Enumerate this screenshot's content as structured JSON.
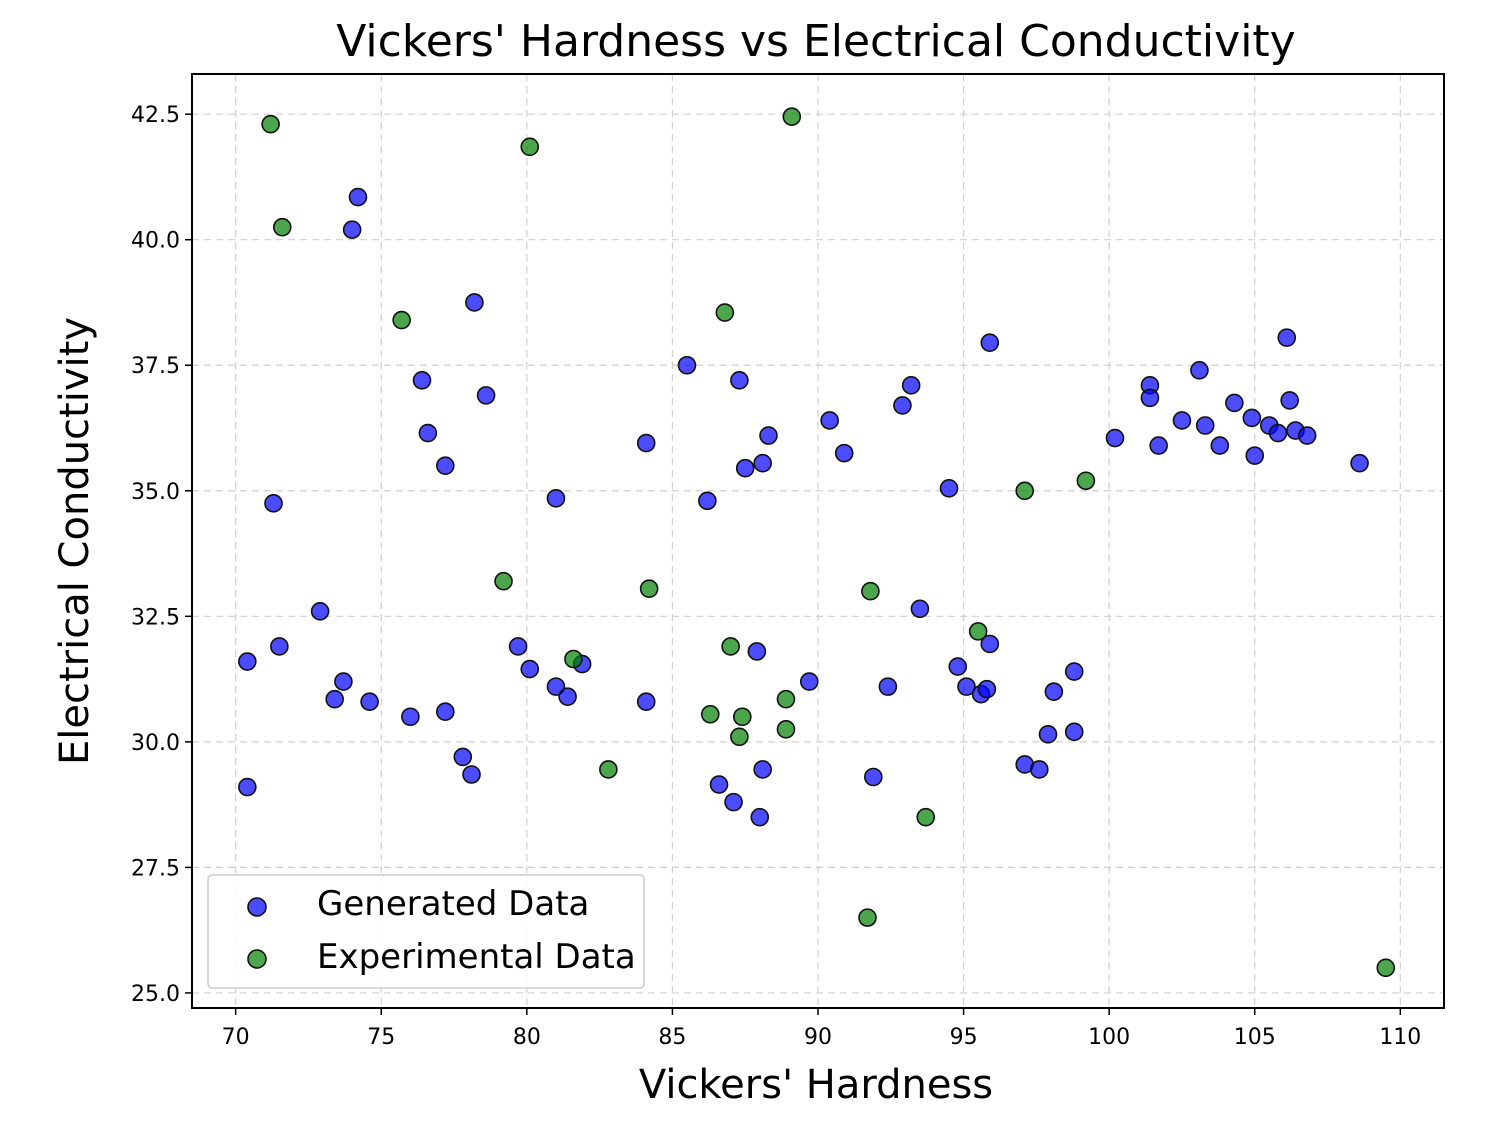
{
  "chart_data": {
    "type": "scatter",
    "title": "Vickers' Hardness vs Electrical Conductivity",
    "xlabel": "Vickers' Hardness",
    "ylabel": "Electrical Conductivity",
    "xlim": [
      68.5,
      111.5
    ],
    "ylim": [
      24.7,
      43.3
    ],
    "xticks": [
      70,
      75,
      80,
      85,
      90,
      95,
      100,
      105,
      110
    ],
    "yticks": [
      25.0,
      27.5,
      30.0,
      32.5,
      35.0,
      37.5,
      40.0,
      42.5
    ],
    "ytick_labels": [
      "25.0",
      "27.5",
      "30.0",
      "32.5",
      "35.0",
      "37.5",
      "40.0",
      "42.5"
    ],
    "grid": true,
    "legend_position": "lower-left",
    "series": [
      {
        "name": "Generated Data",
        "color": "#0000ff",
        "points": [
          [
            74.2,
            40.85
          ],
          [
            74.0,
            40.2
          ],
          [
            78.2,
            38.75
          ],
          [
            76.4,
            37.2
          ],
          [
            78.6,
            36.9
          ],
          [
            76.6,
            36.15
          ],
          [
            77.2,
            35.5
          ],
          [
            71.3,
            34.75
          ],
          [
            72.9,
            32.6
          ],
          [
            70.4,
            31.6
          ],
          [
            71.5,
            31.9
          ],
          [
            73.7,
            31.2
          ],
          [
            73.4,
            30.85
          ],
          [
            74.6,
            30.8
          ],
          [
            76.0,
            30.5
          ],
          [
            77.2,
            30.6
          ],
          [
            77.8,
            29.7
          ],
          [
            78.1,
            29.35
          ],
          [
            70.4,
            29.1
          ],
          [
            79.7,
            31.9
          ],
          [
            80.1,
            31.45
          ],
          [
            81.0,
            31.1
          ],
          [
            81.4,
            30.9
          ],
          [
            81.9,
            31.55
          ],
          [
            81.0,
            34.85
          ],
          [
            84.1,
            35.95
          ],
          [
            84.1,
            30.8
          ],
          [
            85.5,
            37.5
          ],
          [
            86.2,
            34.8
          ],
          [
            87.3,
            37.2
          ],
          [
            87.5,
            35.45
          ],
          [
            88.1,
            35.55
          ],
          [
            88.3,
            36.1
          ],
          [
            87.9,
            31.8
          ],
          [
            86.6,
            29.15
          ],
          [
            87.1,
            28.8
          ],
          [
            88.1,
            29.45
          ],
          [
            88.0,
            28.5
          ],
          [
            89.7,
            31.2
          ],
          [
            90.4,
            36.4
          ],
          [
            90.9,
            35.75
          ],
          [
            92.9,
            36.7
          ],
          [
            93.2,
            37.1
          ],
          [
            94.5,
            35.05
          ],
          [
            95.9,
            37.95
          ],
          [
            93.5,
            32.65
          ],
          [
            92.4,
            31.1
          ],
          [
            91.9,
            29.3
          ],
          [
            94.8,
            31.5
          ],
          [
            95.1,
            31.1
          ],
          [
            95.6,
            30.95
          ],
          [
            95.8,
            31.05
          ],
          [
            95.9,
            31.95
          ],
          [
            97.1,
            29.55
          ],
          [
            97.6,
            29.45
          ],
          [
            97.9,
            30.15
          ],
          [
            98.1,
            31.0
          ],
          [
            98.8,
            30.2
          ],
          [
            98.8,
            31.4
          ],
          [
            100.2,
            36.05
          ],
          [
            101.4,
            37.1
          ],
          [
            101.4,
            36.85
          ],
          [
            101.7,
            35.9
          ],
          [
            102.5,
            36.4
          ],
          [
            103.1,
            37.4
          ],
          [
            103.3,
            36.3
          ],
          [
            103.8,
            35.9
          ],
          [
            104.3,
            36.75
          ],
          [
            104.9,
            36.45
          ],
          [
            105.0,
            35.7
          ],
          [
            105.5,
            36.3
          ],
          [
            105.8,
            36.15
          ],
          [
            106.1,
            38.05
          ],
          [
            106.2,
            36.8
          ],
          [
            106.4,
            36.2
          ],
          [
            106.8,
            36.1
          ],
          [
            108.6,
            35.55
          ]
        ]
      },
      {
        "name": "Experimental Data",
        "color": "#008000",
        "points": [
          [
            71.2,
            42.3
          ],
          [
            71.6,
            40.25
          ],
          [
            75.7,
            38.4
          ],
          [
            80.1,
            41.85
          ],
          [
            89.1,
            42.45
          ],
          [
            86.8,
            38.55
          ],
          [
            79.2,
            33.2
          ],
          [
            84.2,
            33.05
          ],
          [
            81.6,
            31.65
          ],
          [
            82.8,
            29.45
          ],
          [
            86.3,
            30.55
          ],
          [
            87.0,
            31.9
          ],
          [
            87.4,
            30.5
          ],
          [
            87.3,
            30.1
          ],
          [
            88.9,
            30.85
          ],
          [
            88.9,
            30.25
          ],
          [
            91.8,
            33.0
          ],
          [
            91.7,
            26.5
          ],
          [
            93.7,
            28.5
          ],
          [
            95.5,
            32.2
          ],
          [
            97.1,
            35.0
          ],
          [
            99.2,
            35.2
          ],
          [
            109.5,
            25.5
          ]
        ]
      }
    ]
  }
}
